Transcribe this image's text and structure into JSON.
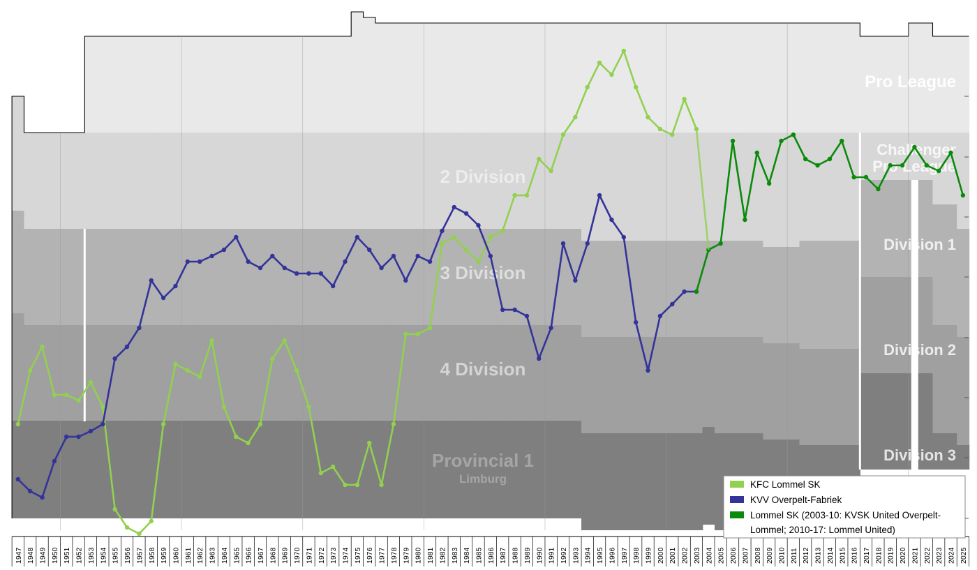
{
  "chart_data": {
    "type": "line",
    "years": [
      1947,
      1948,
      1949,
      1950,
      1951,
      1952,
      1953,
      1954,
      1955,
      1956,
      1957,
      1958,
      1959,
      1960,
      1961,
      1962,
      1963,
      1964,
      1965,
      1966,
      1967,
      1968,
      1969,
      1970,
      1971,
      1972,
      1973,
      1974,
      1975,
      1976,
      1977,
      1978,
      1979,
      1980,
      1981,
      1982,
      1983,
      1984,
      1985,
      1986,
      1987,
      1988,
      1989,
      1990,
      1991,
      1992,
      1993,
      1994,
      1995,
      1996,
      1997,
      1998,
      1999,
      2000,
      2001,
      2002,
      2003,
      2004,
      2005,
      2006,
      2007,
      2008,
      2009,
      2010,
      2011,
      2012,
      2013,
      2014,
      2015,
      2016,
      2017,
      2018,
      2019,
      2020,
      2021,
      2022,
      2023,
      2024,
      2025
    ],
    "divisions": [
      {
        "key": "pro_league",
        "label": "Pro League"
      },
      {
        "key": "challenger",
        "label_lines": [
          "Challenger",
          "Pro League"
        ]
      },
      {
        "key": "div2_old",
        "label": "2 Division"
      },
      {
        "key": "div3_old",
        "label": "3 Division"
      },
      {
        "key": "div4_old",
        "label": "4 Division"
      },
      {
        "key": "provincial",
        "label_lines": [
          "Provincial 1",
          "Limburg"
        ]
      },
      {
        "key": "division1",
        "label": "Division 1"
      },
      {
        "key": "division2",
        "label": "Division 2"
      },
      {
        "key": "division3",
        "label": "Division 3"
      }
    ],
    "series": [
      {
        "name": "KFC Lommel SK",
        "color": "#92d050",
        "x": [
          1947,
          1948,
          1949,
          1950,
          1951,
          1952,
          1953,
          1954,
          1955,
          1956,
          1957,
          1958,
          1959,
          1960,
          1961,
          1962,
          1963,
          1964,
          1965,
          1966,
          1967,
          1968,
          1969,
          1970,
          1971,
          1972,
          1973,
          1974,
          1975,
          1976,
          1977,
          1978,
          1979,
          1980,
          1981,
          1982,
          1983,
          1984,
          1985,
          1986,
          1987,
          1988,
          1989,
          1990,
          1991,
          1992,
          1993,
          1994,
          1995,
          1996,
          1997,
          1998,
          1999,
          2000,
          2001,
          2002,
          2003
        ],
        "y": [
          608,
          531,
          497,
          566,
          566,
          574,
          548,
          583,
          730,
          756,
          765,
          747,
          608,
          522,
          531,
          540,
          488,
          583,
          626,
          635,
          608,
          514,
          488,
          531,
          583,
          678,
          669,
          695,
          695,
          635,
          695,
          608,
          479,
          479,
          470,
          349,
          340,
          358,
          375,
          340,
          331,
          280,
          280,
          228,
          245,
          193,
          168,
          125,
          90,
          107,
          73,
          125,
          168,
          185,
          193,
          142,
          185
        ]
      },
      {
        "name": "KVV Overpelt-Fabriek",
        "color": "#333399",
        "x": [
          1947,
          1948,
          1949,
          1950,
          1951,
          1952,
          1953,
          1954,
          1955,
          1956,
          1957,
          1958,
          1959,
          1960,
          1961,
          1962,
          1963,
          1964,
          1965,
          1966,
          1967,
          1968,
          1969,
          1970,
          1971,
          1972,
          1973,
          1974,
          1975,
          1976,
          1977,
          1978,
          1979,
          1980,
          1981,
          1982,
          1983,
          1984,
          1985,
          1986,
          1987,
          1988,
          1989,
          1990,
          1991,
          1992,
          1993,
          1994,
          1995,
          1996,
          1997,
          1998,
          1999,
          2000,
          2001,
          2002,
          2003
        ],
        "y": [
          687,
          704,
          713,
          661,
          626,
          626,
          618,
          608,
          514,
          497,
          470,
          402,
          427,
          410,
          375,
          375,
          367,
          358,
          340,
          375,
          384,
          367,
          384,
          392,
          392,
          392,
          410,
          375,
          340,
          358,
          384,
          367,
          402,
          367,
          375,
          331,
          297,
          306,
          323,
          367,
          444,
          444,
          453,
          514,
          470,
          349,
          402,
          349,
          280,
          315,
          340,
          462,
          531,
          453,
          436,
          418,
          418
        ]
      },
      {
        "name": "Lommel SK (2003-10: KVSK United Overpelt-Lommel; 2010-17: Lommel United)",
        "color": "#0a8a0a",
        "x": [
          2003,
          2004,
          2005,
          2006,
          2007,
          2008,
          2009,
          2010,
          2011,
          2012,
          2013,
          2014,
          2015,
          2016,
          2017,
          2018,
          2019,
          2020,
          2021,
          2022,
          2023,
          2024,
          2025
        ],
        "y": [
          418,
          358,
          349,
          202,
          315,
          219,
          263,
          202,
          193,
          228,
          237,
          228,
          202,
          254,
          254,
          271,
          237,
          237,
          211,
          237,
          245,
          219,
          280
        ]
      }
    ]
  },
  "legend": {
    "items": [
      {
        "label": "KFC Lommel SK",
        "color": "#92d050"
      },
      {
        "label": "KVV Overpelt-Fabriek",
        "color": "#333399"
      },
      {
        "label_lines": [
          "Lommel SK (2003-10: KVSK United Overpelt-",
          "Lommel; 2010-17: Lommel United)"
        ],
        "color": "#0a8a0a"
      }
    ]
  }
}
